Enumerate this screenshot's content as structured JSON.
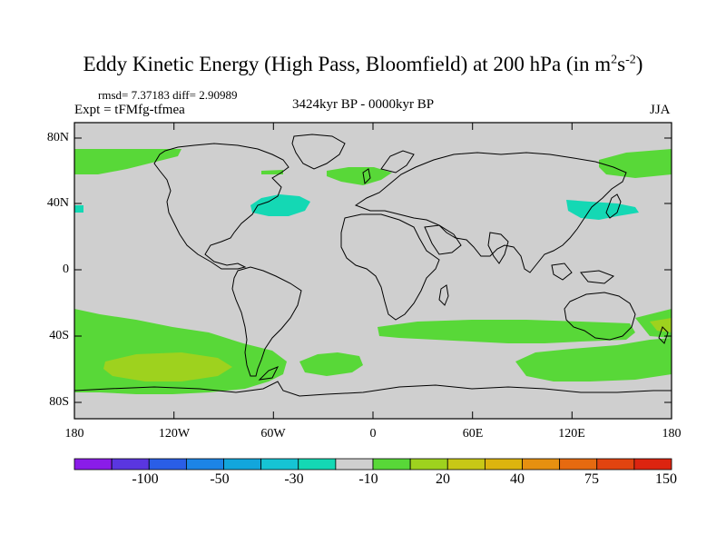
{
  "header": {
    "title_main": "Eddy Kinetic Energy (High Pass, Bloomfield) at 200 hPa (in m",
    "title_sup1": "2",
    "title_mid": "s",
    "title_sup2": "-2",
    "title_end": ")",
    "stats": "rmsd= 7.37183 diff= 2.90989",
    "experiment": "Expt = tFMfg-tfmea",
    "period": "3424kyr BP - 0000kyr BP",
    "season": "JJA"
  },
  "map": {
    "lat_labels": [
      "80N",
      "40N",
      "0",
      "40S",
      "80S"
    ],
    "lon_labels": [
      "180",
      "120W",
      "60W",
      "0",
      "60E",
      "120E",
      "180"
    ],
    "regions": [
      {
        "name": "north-pacific-positive",
        "level": "green"
      },
      {
        "name": "north-atlantic-negative",
        "level": "cyan"
      },
      {
        "name": "west-pacific-negative",
        "level": "cyan"
      },
      {
        "name": "south-pacific-positive",
        "level": "green"
      },
      {
        "name": "south-pacific-core",
        "level": "yellowgreen"
      },
      {
        "name": "southern-indian-ocean-positive",
        "level": "green"
      }
    ]
  },
  "colorbar": {
    "labels": [
      "-100",
      "-50",
      "-30",
      "-10",
      "20",
      "40",
      "75",
      "150"
    ],
    "colors": [
      "#8a1ce8",
      "#5a36e0",
      "#2a5ee6",
      "#1c84e6",
      "#12a6dc",
      "#16c4d4",
      "#14d8b4",
      "#cfcfcf",
      "#58d838",
      "#9ed21e",
      "#c8c816",
      "#dcb40e",
      "#e69010",
      "#e66a10",
      "#e24410",
      "#dc2410"
    ]
  },
  "palette": {
    "land_ocean_gray": "#cfcfcf",
    "green": "#58d838",
    "yellowgreen": "#9ed21e",
    "cyan": "#14d8b4",
    "coast": "#000000"
  }
}
